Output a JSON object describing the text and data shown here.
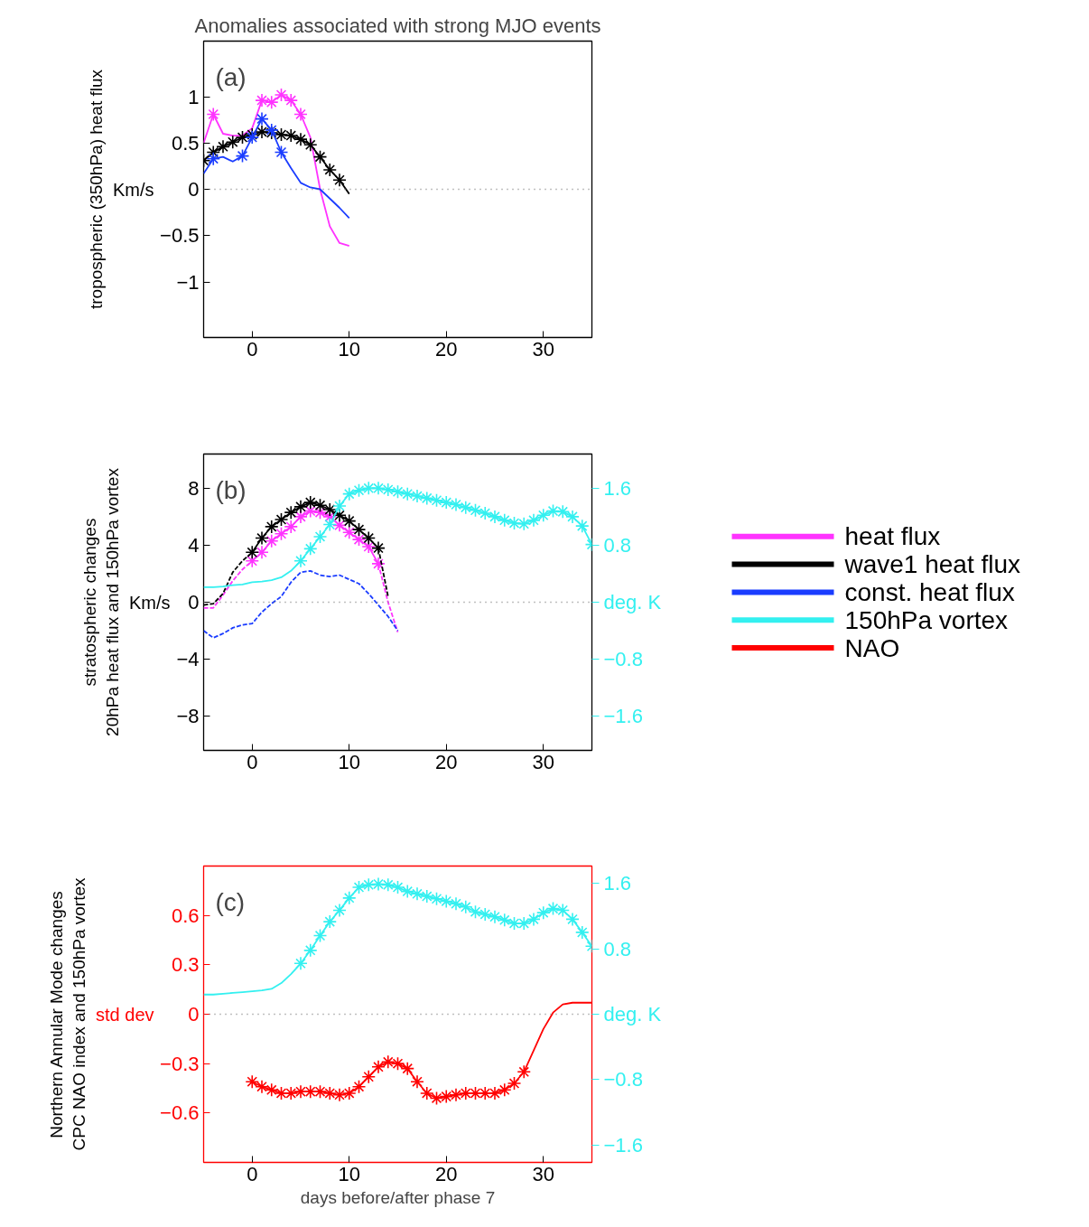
{
  "chart_data": [
    {
      "type": "line",
      "title": "Anomalies associated with strong MJO events",
      "ylabel": "tropospheric (350hPa) heat flux",
      "annotations": [
        "(a)",
        "Km/s"
      ],
      "legend": "right",
      "xlim": [
        -5,
        35
      ],
      "xticks": [
        0,
        10,
        20,
        30
      ],
      "ylim": [
        -1.6,
        1.6
      ],
      "yticks": [
        -1,
        -0.5,
        0,
        0.5,
        1
      ],
      "ref_lines": [
        {
          "axis": "y",
          "value": 0,
          "color": "#808080",
          "line_style": "dotted"
        }
      ],
      "series": [
        {
          "name": "heat flux",
          "color": "#ff33ff",
          "x": [
            -5,
            -4,
            -3,
            -2,
            -1,
            0,
            1,
            2,
            3,
            4,
            5,
            6,
            7,
            8,
            9,
            10
          ],
          "values": [
            0.5,
            0.81,
            0.6,
            0.58,
            0.58,
            0.66,
            0.96,
            0.94,
            1.02,
            0.96,
            0.81,
            0.56,
            0,
            -0.4,
            -0.58,
            -0.61
          ]
        },
        {
          "type": "scatter",
          "marker": "cross",
          "color": "#ff33ff",
          "x": [
            -4,
            1,
            2,
            3,
            4,
            5
          ],
          "values": [
            0.81,
            0.96,
            0.94,
            1.02,
            0.96,
            0.81
          ]
        },
        {
          "name": "wave1 heat flux",
          "color": "#000000",
          "x": [
            -5,
            -4,
            -3,
            -2,
            -1,
            0,
            1,
            2,
            3,
            4,
            5,
            6,
            7,
            8,
            9,
            10
          ],
          "values": [
            0.31,
            0.4,
            0.46,
            0.51,
            0.56,
            0.59,
            0.62,
            0.61,
            0.59,
            0.58,
            0.54,
            0.48,
            0.35,
            0.21,
            0.1,
            -0.05
          ]
        },
        {
          "type": "scatter",
          "marker": "cross",
          "color": "#000000",
          "x": [
            -5,
            -4,
            -3,
            -2,
            -1,
            0,
            1,
            2,
            3,
            4,
            5,
            6,
            7,
            8,
            9
          ],
          "values": [
            0.31,
            0.4,
            0.46,
            0.51,
            0.56,
            0.59,
            0.62,
            0.61,
            0.59,
            0.58,
            0.54,
            0.48,
            0.35,
            0.21,
            0.1
          ]
        },
        {
          "name": "const. heat flux",
          "color": "#1a3cff",
          "x": [
            -5,
            -4,
            -3,
            -2,
            -1,
            0,
            1,
            2,
            3,
            4,
            5,
            6,
            7,
            8,
            9,
            10
          ],
          "values": [
            0.17,
            0.33,
            0.35,
            0.3,
            0.36,
            0.56,
            0.76,
            0.64,
            0.4,
            0.23,
            0.07,
            0.02,
            0,
            -0.1,
            -0.2,
            -0.31
          ]
        },
        {
          "type": "scatter",
          "marker": "cross",
          "color": "#1a3cff",
          "x": [
            -4,
            -1,
            0,
            1,
            2,
            3
          ],
          "values": [
            0.33,
            0.36,
            0.56,
            0.76,
            0.64,
            0.4
          ]
        }
      ]
    },
    {
      "type": "line",
      "ylabel": "stratospheric changes\n20hPa heat flux and 150hPa vortex",
      "annotations": [
        "(b)",
        "Km/s"
      ],
      "legend": "right",
      "xlim": [
        -5,
        35
      ],
      "xticks": [
        0,
        10,
        20,
        30
      ],
      "ylim": [
        -10.4,
        10.4
      ],
      "yticks": [
        -8,
        -4,
        0,
        4,
        8
      ],
      "y2lim": [
        -2.08,
        2.08
      ],
      "y2ticks": [
        -1.6,
        -0.8,
        {
          "value": 0,
          "label": "deg. K"
        },
        0.8,
        1.6
      ],
      "ref_lines": [
        {
          "axis": "y",
          "value": 0,
          "color": "#808080",
          "line_style": "dotted"
        }
      ],
      "series": [
        {
          "color": "#ff33ff",
          "line_style": "dashed",
          "x": [
            -5,
            -4,
            -3,
            -2,
            -1,
            0,
            1,
            2,
            3,
            4,
            5,
            6,
            7,
            8,
            9,
            10,
            11,
            12,
            13,
            14,
            15
          ],
          "values": [
            -0.4,
            -0.4,
            0.5,
            1.5,
            2.3,
            2.9,
            null,
            null,
            null,
            null,
            null,
            null,
            null,
            null,
            null,
            null,
            null,
            null,
            2.7,
            0,
            -2.1
          ]
        },
        {
          "color": "#ff33ff",
          "x": [
            0,
            1,
            2,
            3,
            4,
            5,
            6,
            7,
            8,
            9,
            10,
            11,
            12,
            13
          ],
          "values": [
            2.9,
            3.5,
            4.3,
            4.8,
            5.3,
            6.0,
            6.4,
            6.3,
            6.0,
            5.4,
            4.9,
            4.4,
            3.9,
            2.7
          ]
        },
        {
          "type": "scatter",
          "marker": "cross",
          "color": "#ff33ff",
          "x": [
            0,
            1,
            2,
            3,
            4,
            5,
            6,
            7,
            8,
            9,
            10,
            11,
            12,
            13
          ],
          "values": [
            2.9,
            3.5,
            4.3,
            4.8,
            5.3,
            6.0,
            6.4,
            6.3,
            6.0,
            5.4,
            4.9,
            4.4,
            3.9,
            2.7
          ]
        },
        {
          "color": "#000000",
          "line_style": "dashed",
          "x": [
            -5,
            -4,
            -3,
            -2,
            -1,
            0,
            1,
            2,
            3,
            4,
            5,
            6,
            7,
            8,
            9,
            10,
            11,
            12,
            13,
            14
          ],
          "values": [
            -0.2,
            -0.1,
            0.6,
            2.1,
            2.9,
            3.5,
            null,
            null,
            null,
            null,
            null,
            null,
            null,
            null,
            null,
            null,
            null,
            null,
            3.8,
            0.4
          ]
        },
        {
          "color": "#000000",
          "x": [
            0,
            1,
            2,
            3,
            4,
            5,
            6,
            7,
            8,
            9,
            10,
            11,
            12,
            13
          ],
          "values": [
            3.5,
            4.5,
            5.3,
            5.8,
            6.3,
            6.7,
            7.0,
            6.8,
            6.5,
            6.1,
            5.7,
            5.1,
            4.5,
            3.8
          ]
        },
        {
          "type": "scatter",
          "marker": "cross",
          "color": "#000000",
          "x": [
            0,
            1,
            2,
            3,
            4,
            5,
            6,
            7,
            8,
            9,
            10,
            11,
            12,
            13
          ],
          "values": [
            3.5,
            4.5,
            5.3,
            5.8,
            6.3,
            6.7,
            7.0,
            6.8,
            6.5,
            6.1,
            5.7,
            5.1,
            4.5,
            3.8
          ]
        },
        {
          "color": "#1a3cff",
          "line_style": "dashed",
          "x": [
            -5,
            -4,
            -3,
            -2,
            -1,
            0,
            1,
            2,
            3,
            4,
            5,
            6,
            7,
            8,
            9,
            10,
            11,
            12,
            13,
            14,
            15
          ],
          "values": [
            -2.0,
            -2.5,
            -2.2,
            -1.8,
            -1.6,
            -1.5,
            -0.7,
            -0.1,
            0.4,
            1.4,
            2.1,
            2.2,
            1.9,
            1.8,
            1.9,
            1.6,
            1.3,
            0.6,
            -0.2,
            -1.0,
            -2.0
          ]
        },
        {
          "name": "150hPa vortex",
          "axis": "y2",
          "color": "#33f0f0",
          "x": [
            -5,
            -4,
            -3,
            -2,
            -1,
            0,
            1,
            2,
            3,
            4,
            5,
            6,
            7,
            8,
            9,
            10,
            11,
            12,
            13,
            14,
            15,
            16,
            17,
            18,
            19,
            20,
            21,
            22,
            23,
            24,
            25,
            26,
            27,
            28,
            29,
            30,
            31,
            32,
            33,
            34,
            35
          ],
          "values": [
            0.21,
            0.21,
            0.22,
            0.24,
            0.25,
            0.28,
            0.29,
            0.31,
            0.35,
            0.44,
            0.58,
            0.75,
            0.92,
            1.09,
            1.35,
            1.52,
            1.57,
            1.6,
            1.6,
            1.58,
            1.55,
            1.52,
            1.49,
            1.46,
            1.43,
            1.4,
            1.37,
            1.33,
            1.29,
            1.25,
            1.2,
            1.15,
            1.11,
            1.1,
            1.15,
            1.22,
            1.28,
            1.27,
            1.2,
            1.07,
            0.81
          ]
        },
        {
          "type": "scatter",
          "marker": "cross",
          "axis": "y2",
          "color": "#33f0f0",
          "x": [
            5,
            6,
            7,
            8,
            9,
            10,
            11,
            12,
            13,
            14,
            15,
            16,
            17,
            18,
            19,
            20,
            21,
            22,
            23,
            24,
            25,
            26,
            27,
            28,
            29,
            30,
            31,
            32,
            33,
            34,
            35
          ],
          "values": [
            0.58,
            0.75,
            0.92,
            1.09,
            1.35,
            1.52,
            1.57,
            1.6,
            1.6,
            1.58,
            1.55,
            1.52,
            1.49,
            1.46,
            1.43,
            1.4,
            1.37,
            1.33,
            1.29,
            1.25,
            1.2,
            1.15,
            1.11,
            1.1,
            1.15,
            1.22,
            1.28,
            1.27,
            1.2,
            1.07,
            0.81
          ]
        }
      ]
    },
    {
      "type": "line",
      "ylabel": "Northern Annular Mode changes\nCPC NAO index and 150hPa vortex",
      "xlabel": "days before/after phase 7",
      "annotations": [
        "(c)",
        "std dev"
      ],
      "legend": "right",
      "xlim": [
        -5,
        35
      ],
      "xticks": [
        0,
        10,
        20,
        30
      ],
      "ylim": [
        -0.9,
        0.9
      ],
      "yticks": [
        -0.6,
        -0.3,
        0,
        0.3,
        0.6
      ],
      "y2lim": [
        -1.81,
        1.81
      ],
      "y2ticks": [
        -1.6,
        -0.8,
        {
          "value": 0,
          "label": "deg. K"
        },
        0.8,
        1.6
      ],
      "ref_lines": [
        {
          "axis": "y",
          "value": 0,
          "color": "#808080",
          "line_style": "dotted"
        }
      ],
      "series": [
        {
          "axis": "y2",
          "color": "#33f0f0",
          "x": [
            -5,
            -4,
            -3,
            -2,
            -1,
            0,
            1,
            2,
            3,
            4,
            5,
            6,
            7,
            8,
            9,
            10,
            11,
            12,
            13,
            14,
            15,
            16,
            17,
            18,
            19,
            20,
            21,
            22,
            23,
            24,
            25,
            26,
            27,
            28,
            29,
            30,
            31,
            32,
            33,
            34,
            35
          ],
          "values": [
            0.24,
            0.24,
            0.25,
            0.26,
            0.27,
            0.28,
            0.29,
            0.31,
            0.38,
            0.49,
            0.62,
            0.78,
            0.96,
            1.13,
            1.27,
            1.42,
            1.55,
            1.58,
            1.59,
            1.58,
            1.55,
            1.5,
            1.47,
            1.44,
            1.41,
            1.38,
            1.35,
            1.31,
            1.25,
            1.22,
            1.19,
            1.15,
            1.11,
            1.11,
            1.16,
            1.24,
            1.29,
            1.27,
            1.16,
            1.0,
            0.83
          ]
        },
        {
          "type": "scatter",
          "marker": "cross",
          "axis": "y2",
          "color": "#33f0f0",
          "x": [
            5,
            6,
            7,
            8,
            9,
            10,
            11,
            12,
            13,
            14,
            15,
            16,
            17,
            18,
            19,
            20,
            21,
            22,
            23,
            24,
            25,
            26,
            27,
            28,
            29,
            30,
            31,
            32,
            33,
            34,
            35
          ],
          "values": [
            0.62,
            0.78,
            0.96,
            1.13,
            1.27,
            1.42,
            1.55,
            1.58,
            1.59,
            1.58,
            1.55,
            1.5,
            1.47,
            1.44,
            1.41,
            1.38,
            1.35,
            1.31,
            1.25,
            1.22,
            1.19,
            1.15,
            1.11,
            1.11,
            1.16,
            1.24,
            1.29,
            1.27,
            1.16,
            1.0,
            0.83
          ]
        },
        {
          "name": "NAO",
          "color": "#ff0000",
          "x": [
            0,
            1,
            2,
            3,
            4,
            5,
            6,
            7,
            8,
            9,
            10,
            11,
            12,
            13,
            14,
            15,
            16,
            17,
            18,
            19,
            20,
            21,
            22,
            23,
            24,
            25,
            26,
            27,
            28,
            29,
            30,
            31,
            32,
            33,
            34,
            35
          ],
          "values": [
            -0.41,
            -0.44,
            -0.46,
            -0.48,
            -0.48,
            -0.47,
            -0.47,
            -0.47,
            -0.48,
            -0.49,
            -0.48,
            -0.44,
            -0.38,
            -0.32,
            -0.29,
            -0.3,
            -0.33,
            -0.41,
            -0.48,
            -0.51,
            -0.5,
            -0.49,
            -0.48,
            -0.48,
            -0.48,
            -0.48,
            -0.46,
            -0.42,
            -0.35,
            -0.22,
            -0.09,
            0.01,
            0.06,
            0.07,
            0.07,
            0.07
          ]
        },
        {
          "type": "scatter",
          "marker": "cross",
          "color": "#ff0000",
          "x": [
            0,
            1,
            2,
            3,
            4,
            5,
            6,
            7,
            8,
            9,
            10,
            11,
            12,
            13,
            14,
            15,
            16,
            17,
            18,
            19,
            20,
            21,
            22,
            23,
            24,
            25,
            26,
            27,
            28
          ],
          "values": [
            -0.41,
            -0.44,
            -0.46,
            -0.48,
            -0.48,
            -0.47,
            -0.47,
            -0.47,
            -0.48,
            -0.49,
            -0.48,
            -0.44,
            -0.38,
            -0.32,
            -0.29,
            -0.3,
            -0.33,
            -0.41,
            -0.48,
            -0.51,
            -0.5,
            -0.49,
            -0.48,
            -0.48,
            -0.48,
            -0.48,
            -0.46,
            -0.42,
            -0.35
          ]
        }
      ]
    }
  ]
}
